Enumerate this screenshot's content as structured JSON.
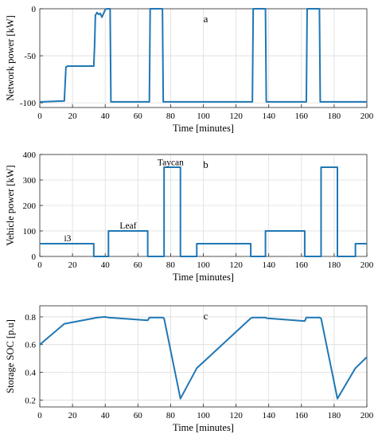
{
  "chart_data": [
    {
      "type": "line",
      "panel_tag": "a",
      "xlabel": "Time [minutes]",
      "ylabel": "Network power [kW]",
      "xlim": [
        0,
        200
      ],
      "ylim": [
        -105,
        0
      ],
      "xticks": [
        0,
        20,
        40,
        60,
        80,
        100,
        120,
        140,
        160,
        180,
        200
      ],
      "yticks": [
        0,
        -50,
        -100
      ],
      "grid": true,
      "color": "#1f77b4",
      "series": [
        {
          "x": [
            0,
            1,
            1.5,
            15,
            16,
            17,
            33,
            33.5,
            34,
            35,
            36,
            37,
            38,
            39,
            40,
            41,
            43,
            43.5,
            67,
            67.5,
            75,
            75.5,
            130,
            130.5,
            138,
            138.5,
            163,
            163.5,
            171,
            171.5,
            200
          ],
          "y": [
            -99,
            -99,
            -99,
            -98,
            -62,
            -61,
            -61,
            -40,
            -7,
            -4,
            -6,
            -5,
            -9,
            -5,
            -1,
            0,
            0,
            -99,
            -99,
            0,
            0,
            -99,
            -99,
            0,
            0,
            -99,
            -99,
            0,
            0,
            -99,
            -99
          ]
        }
      ]
    },
    {
      "type": "line",
      "panel_tag": "b",
      "xlabel": "Time [minutes]",
      "ylabel": "Vehicle power [kW]",
      "xlim": [
        0,
        200
      ],
      "ylim": [
        0,
        400
      ],
      "xticks": [
        0,
        20,
        40,
        60,
        80,
        100,
        120,
        140,
        160,
        180,
        200
      ],
      "yticks": [
        0,
        100,
        200,
        300,
        400
      ],
      "grid": true,
      "color": "#1f77b4",
      "annotations": [
        {
          "text": "i3",
          "x": 17,
          "y": 60
        },
        {
          "text": "Leaf",
          "x": 54,
          "y": 110
        },
        {
          "text": "Taycan",
          "x": 80,
          "y": 358
        }
      ],
      "series": [
        {
          "x": [
            0,
            33,
            33,
            42,
            42,
            66,
            66,
            76,
            76,
            86,
            86,
            96,
            96,
            129,
            129,
            138,
            138,
            162,
            162,
            172,
            172,
            182,
            182,
            193,
            193,
            200
          ],
          "y": [
            50,
            50,
            0,
            0,
            100,
            100,
            0,
            0,
            350,
            350,
            0,
            0,
            50,
            50,
            0,
            0,
            100,
            100,
            0,
            0,
            350,
            350,
            0,
            0,
            50,
            50
          ]
        }
      ]
    },
    {
      "type": "line",
      "panel_tag": "c",
      "xlabel": "Time [minutes]",
      "ylabel": "Storage SOC [p.u]",
      "xlim": [
        0,
        200
      ],
      "ylim": [
        0.15,
        0.88
      ],
      "xticks": [
        0,
        20,
        40,
        60,
        80,
        100,
        120,
        140,
        160,
        180,
        200
      ],
      "yticks": [
        0.2,
        0.4,
        0.6,
        0.8
      ],
      "grid": true,
      "color": "#1f77b4",
      "series": [
        {
          "x": [
            0,
            15,
            33,
            35,
            40,
            42,
            66,
            67,
            75,
            76,
            86,
            96,
            129,
            130,
            138,
            139,
            162,
            163,
            171,
            172,
            182,
            193,
            200
          ],
          "y": [
            0.6,
            0.75,
            0.79,
            0.795,
            0.8,
            0.795,
            0.775,
            0.795,
            0.795,
            0.79,
            0.21,
            0.43,
            0.79,
            0.795,
            0.795,
            0.79,
            0.77,
            0.795,
            0.795,
            0.79,
            0.21,
            0.43,
            0.51
          ]
        }
      ]
    }
  ]
}
